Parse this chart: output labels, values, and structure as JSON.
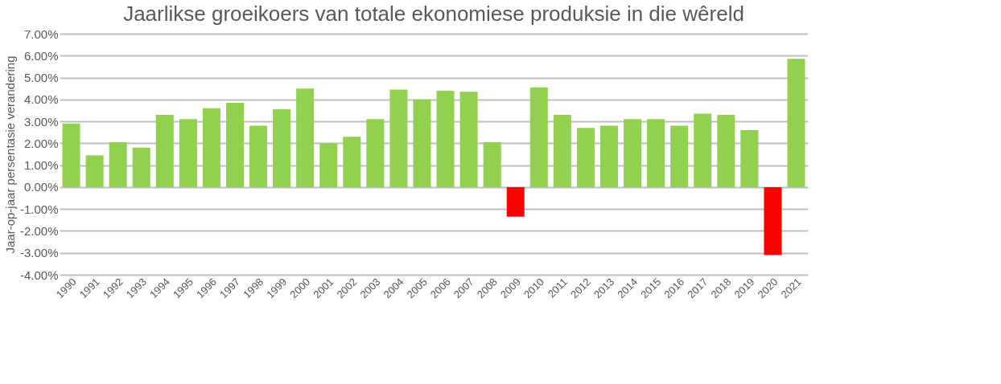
{
  "chart_data": {
    "type": "bar",
    "title": "Jaarlikse groeikoers van totale ekonomiese produksie in die wêreld",
    "ylabel": "Jaar-op-jaar persentasie verandering",
    "categories": [
      "1990",
      "1991",
      "1992",
      "1993",
      "1994",
      "1995",
      "1996",
      "1997",
      "1998",
      "1999",
      "2000",
      "2001",
      "2002",
      "2003",
      "2004",
      "2005",
      "2006",
      "2007",
      "2008",
      "2009",
      "2010",
      "2011",
      "2012",
      "2013",
      "2014",
      "2015",
      "2016",
      "2017",
      "2018",
      "2019",
      "2020",
      "2021"
    ],
    "values": [
      2.9,
      1.45,
      2.05,
      1.8,
      3.3,
      3.1,
      3.6,
      3.85,
      2.8,
      3.55,
      4.5,
      2.0,
      2.3,
      3.1,
      4.45,
      4.0,
      4.4,
      4.35,
      2.05,
      -1.35,
      4.55,
      3.3,
      2.7,
      2.8,
      3.1,
      3.1,
      2.8,
      3.35,
      3.3,
      2.6,
      -3.1,
      5.85
    ],
    "colors": [
      "#92d050",
      "#92d050",
      "#92d050",
      "#92d050",
      "#92d050",
      "#92d050",
      "#92d050",
      "#92d050",
      "#92d050",
      "#92d050",
      "#92d050",
      "#92d050",
      "#92d050",
      "#92d050",
      "#92d050",
      "#92d050",
      "#92d050",
      "#92d050",
      "#92d050",
      "#ff0000",
      "#92d050",
      "#92d050",
      "#92d050",
      "#92d050",
      "#92d050",
      "#92d050",
      "#92d050",
      "#92d050",
      "#92d050",
      "#92d050",
      "#ff0000",
      "#92d050"
    ],
    "ylim": [
      -4,
      7
    ],
    "yticks": [
      {
        "value": -4,
        "label": "-4.00%"
      },
      {
        "value": -3,
        "label": "-3.00%"
      },
      {
        "value": -2,
        "label": "-2.00%"
      },
      {
        "value": -1,
        "label": "-1.00%"
      },
      {
        "value": 0,
        "label": "0.00%"
      },
      {
        "value": 1,
        "label": "1.00%"
      },
      {
        "value": 2,
        "label": "2.00%"
      },
      {
        "value": 3,
        "label": "3.00%"
      },
      {
        "value": 4,
        "label": "4.00%"
      },
      {
        "value": 5,
        "label": "5.00%"
      },
      {
        "value": 6,
        "label": "6.00%"
      },
      {
        "value": 7,
        "label": "7.00%"
      }
    ],
    "grid": "y",
    "legend": false
  }
}
